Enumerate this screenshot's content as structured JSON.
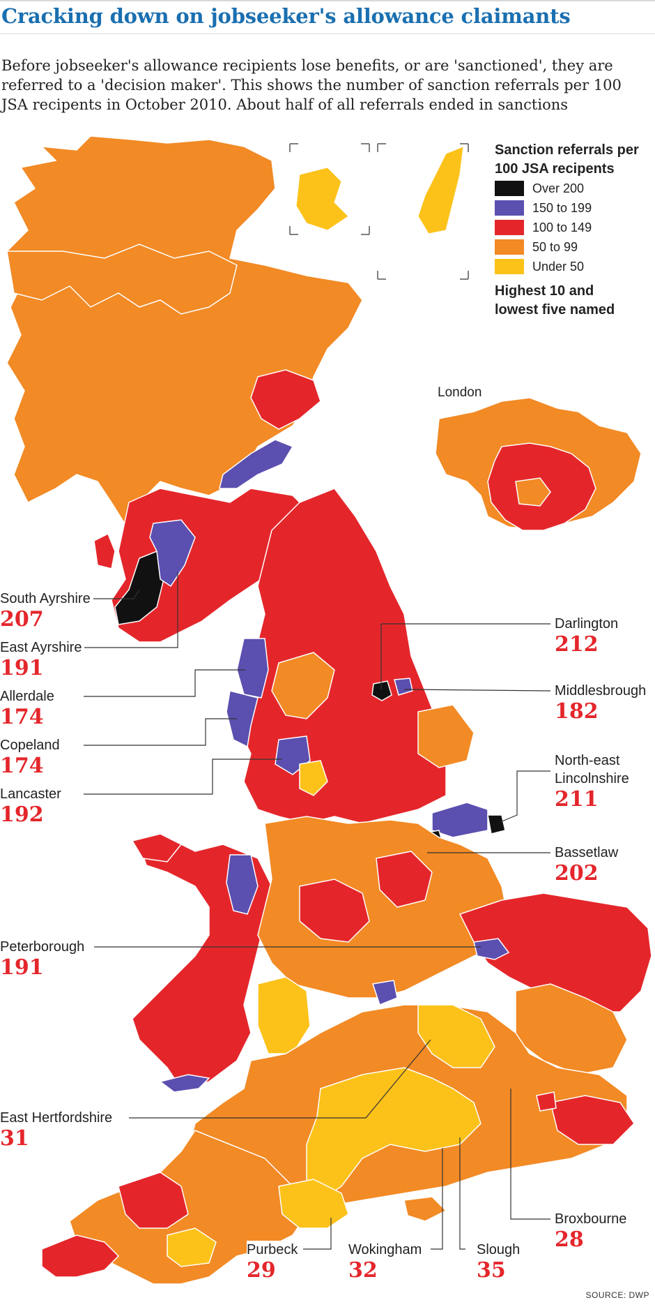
{
  "title": "Cracking down on jobseeker's allowance claimants",
  "intro": "Before jobseeker's allowance recipients lose benefits, or are 'sanctioned', they are referred to a 'decision maker'. This shows the number of sanction referrals per 100 JSA recipents in October 2010. About half of all referrals ended in sanctions",
  "legend": {
    "title": "Sanction referrals per 100 JSA recipents",
    "items": [
      {
        "label": "Over 200",
        "color": "#111111"
      },
      {
        "label": "150 to 199",
        "color": "#5b4fb0"
      },
      {
        "label": "100 to 149",
        "color": "#e4262b"
      },
      {
        "label": "50 to 99",
        "color": "#f28a25"
      },
      {
        "label": "Under 50",
        "color": "#fcc21a"
      }
    ],
    "note": "Highest 10 and lowest five named"
  },
  "inset_label": "London",
  "callouts": [
    {
      "name": "South Ayrshire",
      "value": "207"
    },
    {
      "name": "East Ayrshire",
      "value": "191"
    },
    {
      "name": "Allerdale",
      "value": "174"
    },
    {
      "name": "Copeland",
      "value": "174"
    },
    {
      "name": "Lancaster",
      "value": "192"
    },
    {
      "name": "Peterborough",
      "value": "191"
    },
    {
      "name": "East Hertfordshire",
      "value": "31"
    },
    {
      "name": "Darlington",
      "value": "212"
    },
    {
      "name": "Middlesbrough",
      "value": "182"
    },
    {
      "name": "North-east Lincolnshire",
      "value": "211"
    },
    {
      "name": "Bassetlaw",
      "value": "202"
    },
    {
      "name": "Broxbourne",
      "value": "28"
    },
    {
      "name": "Purbeck",
      "value": "29"
    },
    {
      "name": "Wokingham",
      "value": "32"
    },
    {
      "name": "Slough",
      "value": "35"
    }
  ],
  "colors": {
    "over_200": "#111111",
    "r150_199": "#5b4fb0",
    "r100_149": "#e4262b",
    "r50_99": "#f28a25",
    "under_50": "#fcc21a",
    "title": "#1a6fb0",
    "value_text": "#e4262b"
  },
  "source": "SOURCE: DWP"
}
